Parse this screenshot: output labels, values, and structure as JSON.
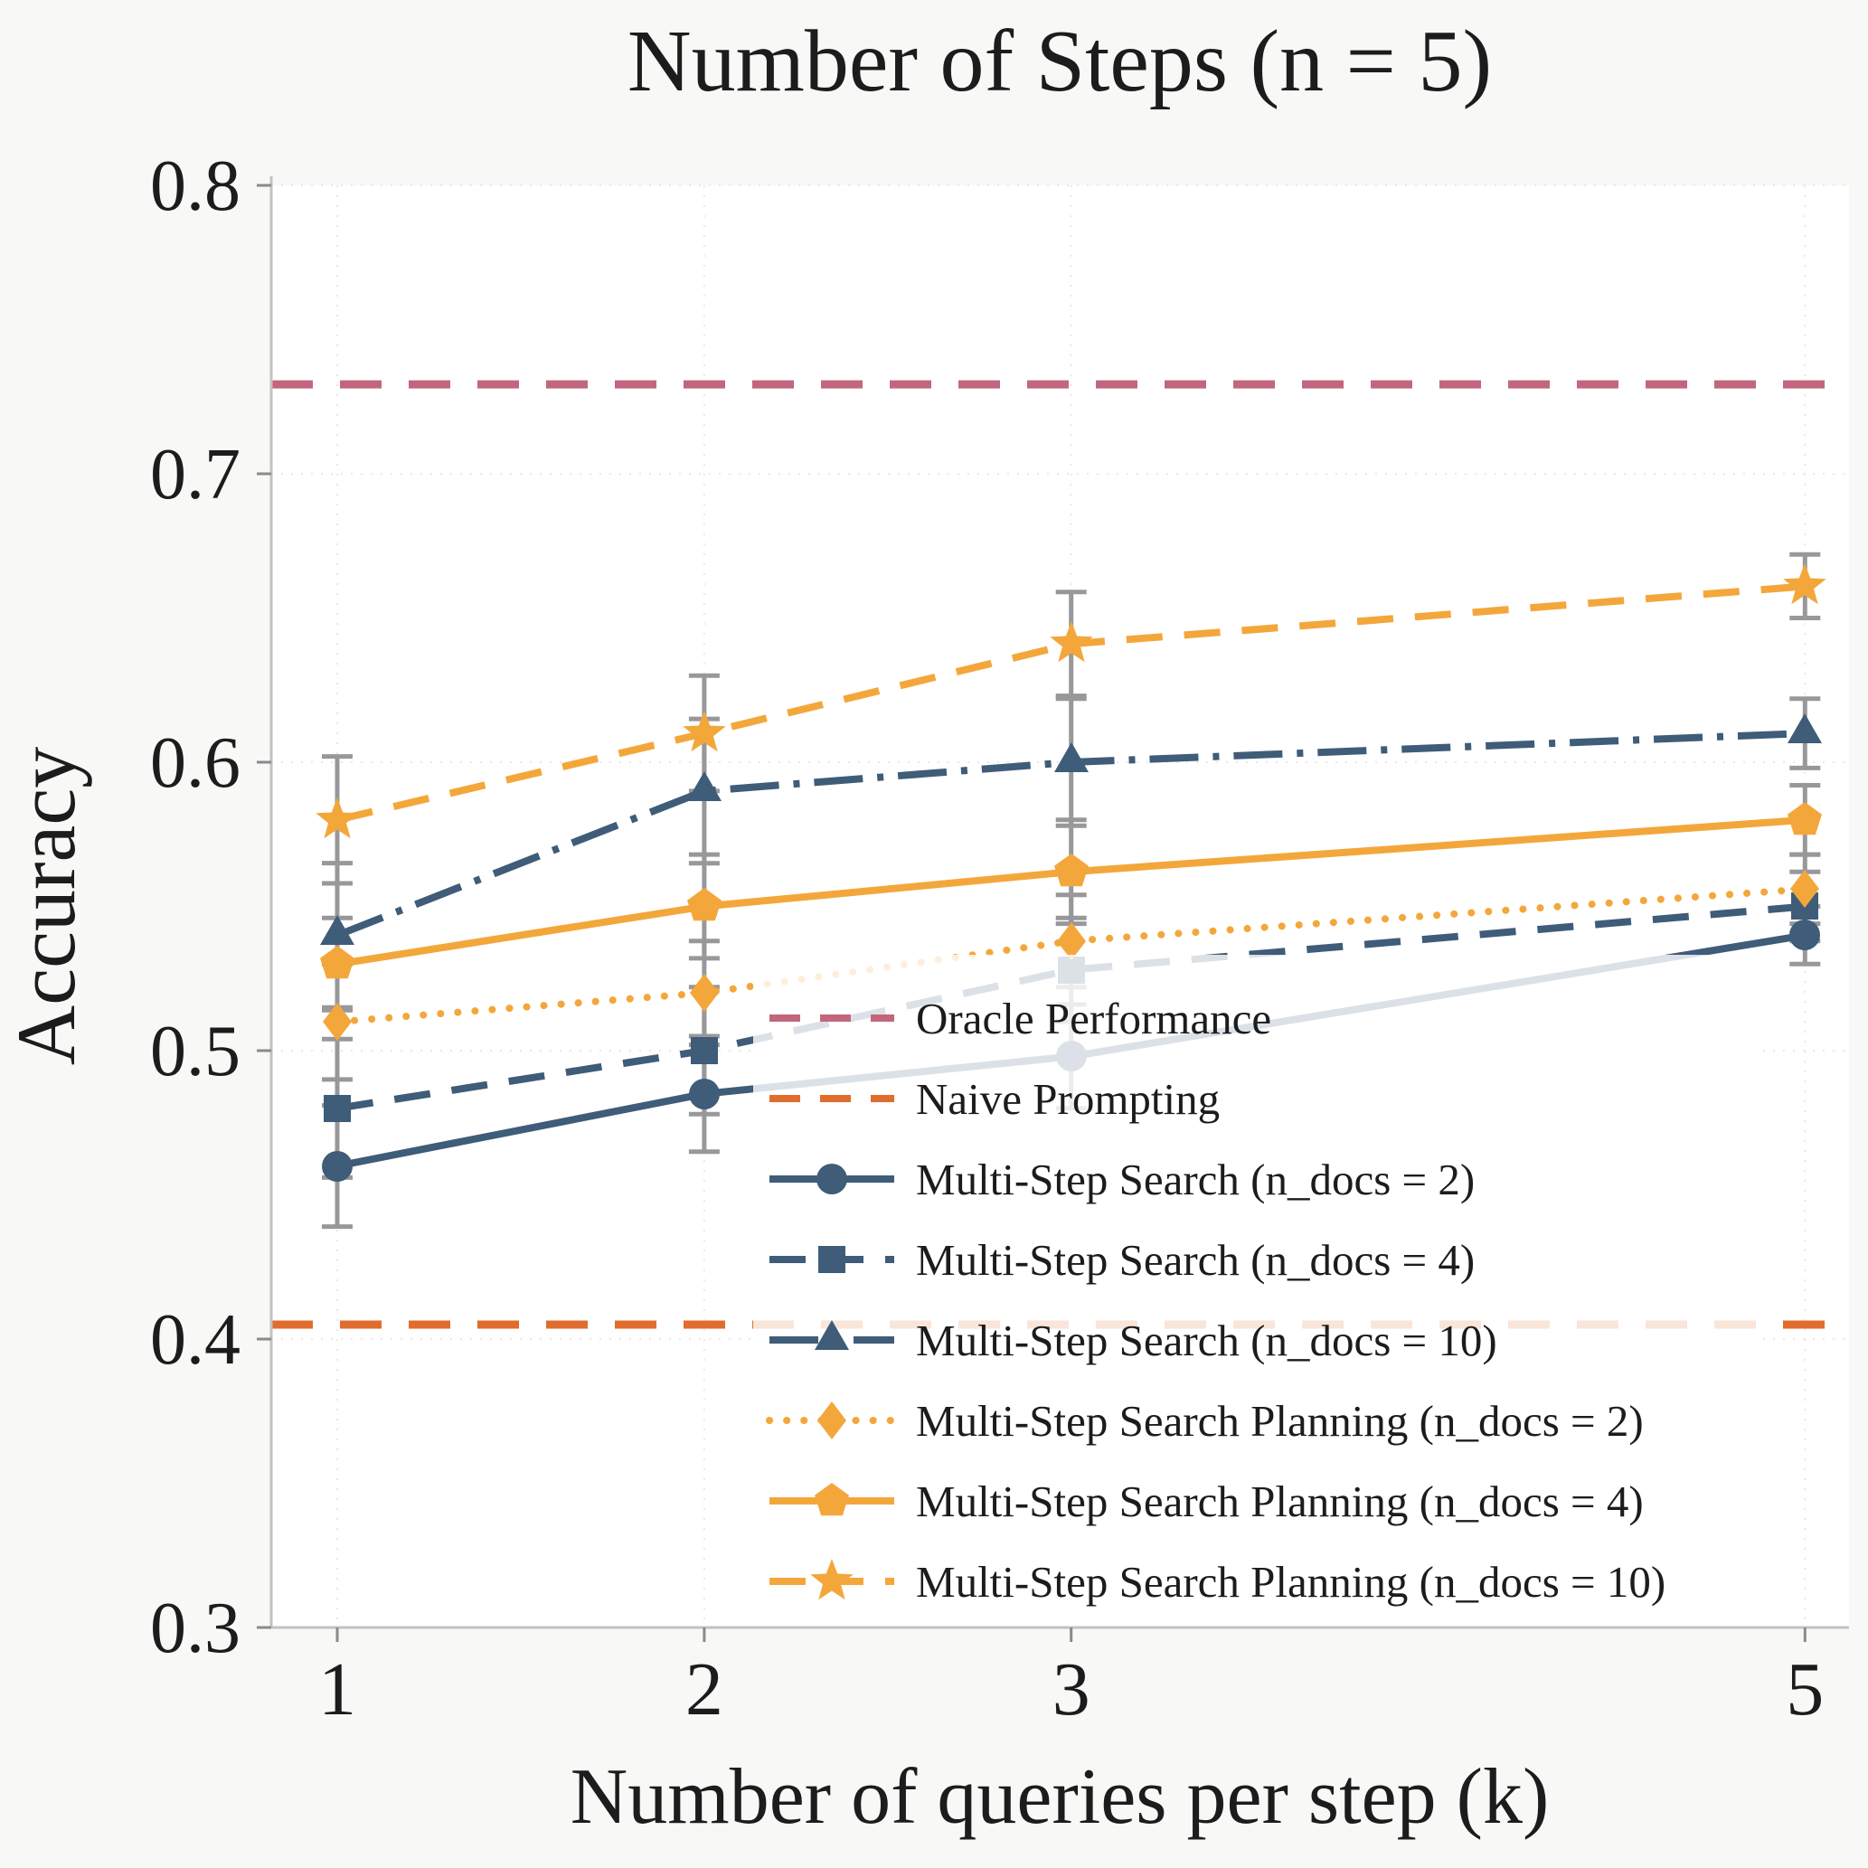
{
  "figure": {
    "background": "#f8f8f6",
    "plot_background": "#ffffff"
  },
  "chart_data": {
    "type": "line",
    "title": "Number of Steps (n = 5)",
    "xlabel": "Number of queries per step (k)",
    "ylabel": "Accuracy",
    "xlim": [
      0.82,
      5.12
    ],
    "ylim": [
      0.3,
      0.8
    ],
    "xticks": [
      1,
      2,
      3,
      5
    ],
    "yticks": [
      0.3,
      0.4,
      0.5,
      0.6,
      0.7,
      0.8
    ],
    "grid": true,
    "error_bar_color": "#98989b",
    "legend": {
      "position": "inside-lower-center-right",
      "frame": false,
      "background": "rgba(255,255,255,0.82)"
    },
    "hlines": [
      {
        "name": "Oracle Performance",
        "y": 0.731,
        "color": "#c2667e",
        "line": "dashed"
      },
      {
        "name": "Naive Prompting",
        "y": 0.405,
        "color": "#e06d2e",
        "line": "dashed"
      }
    ],
    "x": [
      1,
      2,
      3,
      5
    ],
    "series": [
      {
        "name": "Multi-Step Search (n_docs = 2)",
        "color": "#3f5c78",
        "line": "solid",
        "marker": "circle",
        "values": [
          0.46,
          0.485,
          0.498,
          0.54
        ],
        "yerr": [
          0.021,
          0.02,
          0.018,
          0.01
        ]
      },
      {
        "name": "Multi-Step Search (n_docs = 4)",
        "color": "#3f5c78",
        "line": "dashed",
        "marker": "square",
        "values": [
          0.48,
          0.5,
          0.528,
          0.55
        ],
        "yerr": [
          0.024,
          0.022,
          0.018,
          0.012
        ]
      },
      {
        "name": "Multi-Step Search (n_docs = 10)",
        "color": "#3f5c78",
        "line": "dashdot",
        "marker": "triangle",
        "values": [
          0.54,
          0.59,
          0.6,
          0.61
        ],
        "yerr": [
          0.025,
          0.025,
          0.022,
          0.012
        ]
      },
      {
        "name": "Multi-Step Search Planning (n_docs = 2)",
        "color": "#f3a73b",
        "line": "dotted",
        "marker": "diamond",
        "values": [
          0.51,
          0.52,
          0.538,
          0.556
        ],
        "yerr": [
          0.02,
          0.018,
          0.016,
          0.012
        ]
      },
      {
        "name": "Multi-Step Search Planning (n_docs = 4)",
        "color": "#f3a73b",
        "line": "solid",
        "marker": "pentagon",
        "values": [
          0.53,
          0.55,
          0.562,
          0.58
        ],
        "yerr": [
          0.016,
          0.018,
          0.018,
          0.012
        ]
      },
      {
        "name": "Multi-Step Search Planning (n_docs = 10)",
        "color": "#f3a73b",
        "line": "dashed",
        "marker": "star",
        "values": [
          0.58,
          0.61,
          0.641,
          0.661
        ],
        "yerr": [
          0.022,
          0.02,
          0.018,
          0.011
        ]
      }
    ]
  }
}
